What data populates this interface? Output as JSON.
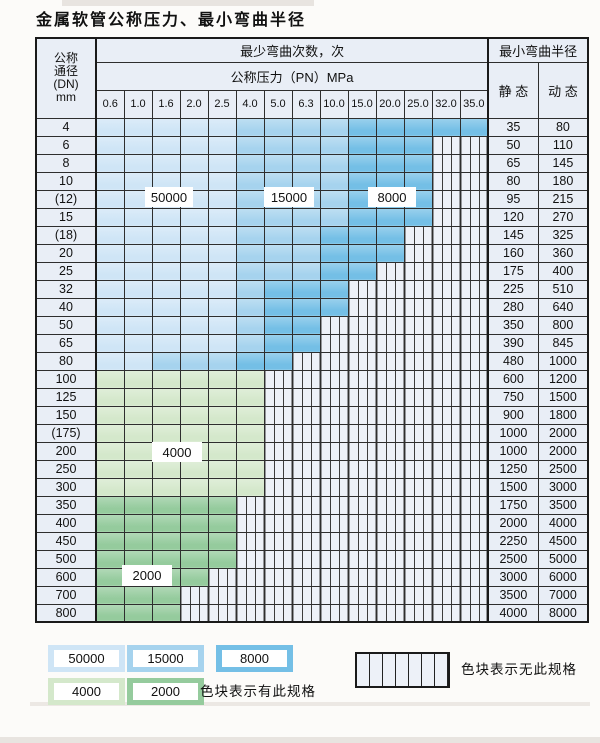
{
  "title": "金属软管公称压力、最小弯曲半径",
  "table": {
    "dn_header_lines": [
      "公称",
      "通径",
      "(DN)",
      "mm"
    ],
    "bend_cycles_header": "最少弯曲次数，次",
    "pressure_header": "公称压力（PN）MPa",
    "radius_header": "最小弯曲半径",
    "static_label": "静 态",
    "dynamic_label": "动 态",
    "pressure_columns": [
      "0.6",
      "1.0",
      "1.6",
      "2.0",
      "2.5",
      "4.0",
      "5.0",
      "6.3",
      "10.0",
      "15.0",
      "20.0",
      "25.0",
      "32.0",
      "35.0"
    ],
    "band_legend_values": {
      "L": "50000",
      "M": "15000",
      "D": "8000",
      "g": "4000",
      "G": "2000",
      "H": "no-spec"
    },
    "rows": [
      {
        "dn": "4",
        "static": "35",
        "dynamic": "80",
        "bands": "LLLLLMMMMDDDDD"
      },
      {
        "dn": "6",
        "static": "50",
        "dynamic": "110",
        "bands": "LLLLLMMMMDDDHH"
      },
      {
        "dn": "8",
        "static": "65",
        "dynamic": "145",
        "bands": "LLLLLMMMMDDDHH"
      },
      {
        "dn": "10",
        "static": "80",
        "dynamic": "180",
        "bands": "LLLLLMMMMDDDHH"
      },
      {
        "dn": "(12)",
        "static": "95",
        "dynamic": "215",
        "bands": "LLLLLMMMMDDDHH"
      },
      {
        "dn": "15",
        "static": "120",
        "dynamic": "270",
        "bands": "LLLLLMMMMDDDHH"
      },
      {
        "dn": "(18)",
        "static": "145",
        "dynamic": "325",
        "bands": "LLLLLMMMDDDHHH"
      },
      {
        "dn": "20",
        "static": "160",
        "dynamic": "360",
        "bands": "LLLLLMMMDDDHHH"
      },
      {
        "dn": "25",
        "static": "175",
        "dynamic": "400",
        "bands": "LLLLLMMMDDHHHH"
      },
      {
        "dn": "32",
        "static": "225",
        "dynamic": "510",
        "bands": "LLLLLMDDDHHHHH"
      },
      {
        "dn": "40",
        "static": "280",
        "dynamic": "640",
        "bands": "LLLLLMDDDHHHHH"
      },
      {
        "dn": "50",
        "static": "350",
        "dynamic": "800",
        "bands": "LLLLLMDDHHHHHH"
      },
      {
        "dn": "65",
        "static": "390",
        "dynamic": "845",
        "bands": "LLLLLMDDHHHHHH"
      },
      {
        "dn": "80",
        "static": "480",
        "dynamic": "1000",
        "bands": "LLMMMDDHHHHHHH"
      },
      {
        "dn": "100",
        "static": "600",
        "dynamic": "1200",
        "bands": "ggggggHHHHHHHH"
      },
      {
        "dn": "125",
        "static": "750",
        "dynamic": "1500",
        "bands": "ggggggHHHHHHHH"
      },
      {
        "dn": "150",
        "static": "900",
        "dynamic": "1800",
        "bands": "ggggggHHHHHHHH"
      },
      {
        "dn": "(175)",
        "static": "1000",
        "dynamic": "2000",
        "bands": "ggggggHHHHHHHH"
      },
      {
        "dn": "200",
        "static": "1000",
        "dynamic": "2000",
        "bands": "ggggggHHHHHHHH"
      },
      {
        "dn": "250",
        "static": "1250",
        "dynamic": "2500",
        "bands": "ggggggHHHHHHHH"
      },
      {
        "dn": "300",
        "static": "1500",
        "dynamic": "3000",
        "bands": "ggggggHHHHHHHH"
      },
      {
        "dn": "350",
        "static": "1750",
        "dynamic": "3500",
        "bands": "GGGGGHHHHHHHHH"
      },
      {
        "dn": "400",
        "static": "2000",
        "dynamic": "4000",
        "bands": "GGGGGHHHHHHHHH"
      },
      {
        "dn": "450",
        "static": "2250",
        "dynamic": "4500",
        "bands": "GGGGGHHHHHHHHH"
      },
      {
        "dn": "500",
        "static": "2500",
        "dynamic": "5000",
        "bands": "GGGGGHHHHHHHHH"
      },
      {
        "dn": "600",
        "static": "3000",
        "dynamic": "6000",
        "bands": "GGGGHHHHHHHHHH"
      },
      {
        "dn": "700",
        "static": "3500",
        "dynamic": "7000",
        "bands": "GGGHHHHHHHHHHH"
      },
      {
        "dn": "800",
        "static": "4000",
        "dynamic": "8000",
        "bands": "GGGHHHHHHHHHHH"
      }
    ],
    "overlay_labels": {
      "l50000": "50000",
      "l15000": "15000",
      "l8000": "8000",
      "l4000": "4000",
      "l2000": "2000"
    }
  },
  "legend": {
    "items": [
      {
        "label": "50000",
        "color_key": "blue-light"
      },
      {
        "label": "15000",
        "color_key": "blue-mid"
      },
      {
        "label": "8000",
        "color_key": "blue-dark"
      },
      {
        "label": "4000",
        "color_key": "green-light"
      },
      {
        "label": "2000",
        "color_key": "green-mid"
      }
    ],
    "has_spec_text": "色块表示有此规格",
    "no_spec_text": "色块表示无此规格"
  },
  "colors": {
    "blue-light": "#cfe5f6",
    "blue-mid": "#a6d3ee",
    "blue-dark": "#74bfe6",
    "green-light": "#d4e8cb",
    "green-mid": "#95cb9d",
    "hatch-bg": "#edf1f8",
    "header-bg": "#e9eef6",
    "grid-line": "#2e2e2e"
  }
}
